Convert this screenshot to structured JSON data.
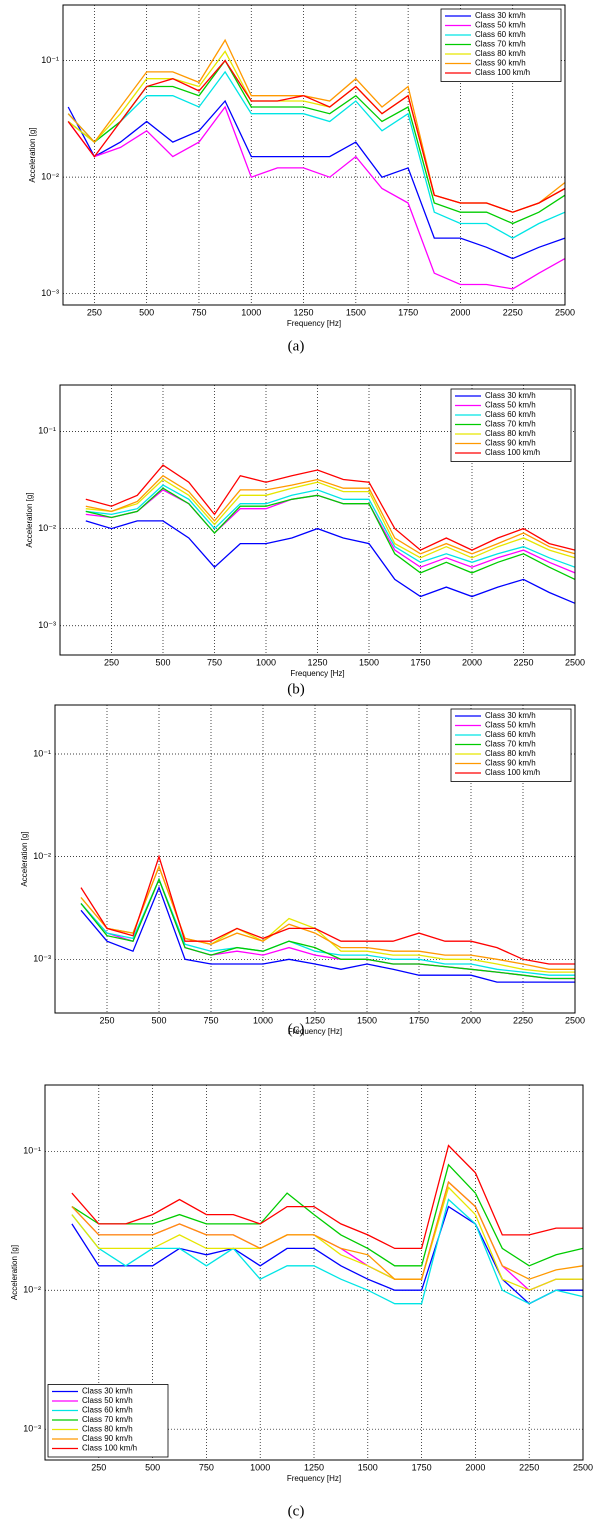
{
  "chart_data": [
    {
      "type": "line",
      "log_y": true,
      "grid": true,
      "legend": "upper right",
      "caption": "(a)",
      "xlabel": "Frequency [Hz]",
      "ylabel": "Acceleration [g]",
      "xlim": [
        100,
        2500
      ],
      "ylim": [
        0.0008,
        0.3
      ],
      "xticks": [
        250,
        500,
        750,
        1000,
        1250,
        1500,
        1750,
        2000,
        2250,
        2500
      ],
      "yticks": [
        {
          "value": 0.001,
          "label": "10⁻³"
        },
        {
          "value": 0.01,
          "label": "10⁻²"
        },
        {
          "value": 0.1,
          "label": "10⁻¹"
        }
      ],
      "x": [
        125,
        250,
        375,
        500,
        625,
        750,
        875,
        1000,
        1125,
        1250,
        1375,
        1500,
        1625,
        1750,
        1875,
        2000,
        2125,
        2250,
        2375,
        2500
      ],
      "series": [
        {
          "name": "Class 30 km/h",
          "color": "#0000ff",
          "values": [
            0.04,
            0.015,
            0.02,
            0.03,
            0.02,
            0.025,
            0.045,
            0.015,
            0.015,
            0.015,
            0.015,
            0.02,
            0.01,
            0.012,
            0.003,
            0.003,
            0.0025,
            0.002,
            0.0025,
            0.003
          ]
        },
        {
          "name": "Class 50 km/h",
          "color": "#ff00ff",
          "values": [
            0.03,
            0.015,
            0.018,
            0.025,
            0.015,
            0.02,
            0.04,
            0.01,
            0.012,
            0.012,
            0.01,
            0.015,
            0.008,
            0.006,
            0.0015,
            0.0012,
            0.0012,
            0.0011,
            0.0015,
            0.002
          ]
        },
        {
          "name": "Class 60 km/h",
          "color": "#00e5e5",
          "values": [
            0.035,
            0.02,
            0.03,
            0.05,
            0.05,
            0.04,
            0.08,
            0.035,
            0.035,
            0.035,
            0.03,
            0.045,
            0.025,
            0.035,
            0.005,
            0.004,
            0.004,
            0.003,
            0.004,
            0.005
          ]
        },
        {
          "name": "Class 70 km/h",
          "color": "#00cc00",
          "values": [
            0.03,
            0.02,
            0.03,
            0.06,
            0.06,
            0.05,
            0.1,
            0.04,
            0.04,
            0.04,
            0.035,
            0.05,
            0.03,
            0.04,
            0.006,
            0.005,
            0.005,
            0.004,
            0.005,
            0.007
          ]
        },
        {
          "name": "Class 80 km/h",
          "color": "#e6e600",
          "values": [
            0.03,
            0.02,
            0.035,
            0.07,
            0.07,
            0.06,
            0.12,
            0.045,
            0.045,
            0.045,
            0.04,
            0.06,
            0.035,
            0.05,
            0.007,
            0.006,
            0.006,
            0.005,
            0.006,
            0.008
          ]
        },
        {
          "name": "Class 90 km/h",
          "color": "#ff9900",
          "values": [
            0.035,
            0.02,
            0.04,
            0.08,
            0.08,
            0.065,
            0.15,
            0.05,
            0.05,
            0.05,
            0.045,
            0.07,
            0.04,
            0.06,
            0.007,
            0.006,
            0.006,
            0.005,
            0.006,
            0.009
          ]
        },
        {
          "name": "Class 100 km/h",
          "color": "#ff0000",
          "values": [
            0.03,
            0.015,
            0.03,
            0.06,
            0.07,
            0.055,
            0.1,
            0.045,
            0.045,
            0.05,
            0.04,
            0.06,
            0.035,
            0.05,
            0.007,
            0.006,
            0.006,
            0.005,
            0.006,
            0.008
          ]
        }
      ]
    },
    {
      "type": "line",
      "log_y": true,
      "grid": true,
      "legend": "upper right",
      "caption": "(b)",
      "xlabel": "Frequency [Hz]",
      "ylabel": "Acceleration [g]",
      "xlim": [
        0,
        2500
      ],
      "ylim": [
        0.0005,
        0.3
      ],
      "xticks": [
        250,
        500,
        750,
        1000,
        1250,
        1500,
        1750,
        2000,
        2250,
        2500
      ],
      "yticks": [
        {
          "value": 0.001,
          "label": "10⁻³"
        },
        {
          "value": 0.01,
          "label": "10⁻²"
        },
        {
          "value": 0.1,
          "label": "10⁻¹"
        }
      ],
      "x": [
        125,
        250,
        375,
        500,
        625,
        750,
        875,
        1000,
        1125,
        1250,
        1375,
        1500,
        1625,
        1750,
        1875,
        2000,
        2125,
        2250,
        2375,
        2500
      ],
      "series": [
        {
          "name": "Class 30 km/h",
          "color": "#0000ff",
          "values": [
            0.012,
            0.01,
            0.012,
            0.012,
            0.008,
            0.004,
            0.007,
            0.007,
            0.008,
            0.01,
            0.008,
            0.007,
            0.003,
            0.002,
            0.0025,
            0.002,
            0.0025,
            0.003,
            0.0022,
            0.0017
          ]
        },
        {
          "name": "Class 50 km/h",
          "color": "#ff00ff",
          "values": [
            0.014,
            0.013,
            0.015,
            0.025,
            0.018,
            0.009,
            0.016,
            0.016,
            0.02,
            0.022,
            0.018,
            0.018,
            0.006,
            0.004,
            0.005,
            0.004,
            0.005,
            0.006,
            0.0045,
            0.0035
          ]
        },
        {
          "name": "Class 60 km/h",
          "color": "#00e5e5",
          "values": [
            0.015,
            0.014,
            0.016,
            0.028,
            0.02,
            0.01,
            0.018,
            0.018,
            0.022,
            0.025,
            0.02,
            0.02,
            0.0065,
            0.0045,
            0.0055,
            0.0045,
            0.0055,
            0.0065,
            0.005,
            0.004
          ]
        },
        {
          "name": "Class 70 km/h",
          "color": "#00cc00",
          "values": [
            0.015,
            0.013,
            0.015,
            0.026,
            0.018,
            0.009,
            0.017,
            0.017,
            0.02,
            0.022,
            0.018,
            0.018,
            0.0055,
            0.0035,
            0.0045,
            0.0035,
            0.0045,
            0.0055,
            0.004,
            0.003
          ]
        },
        {
          "name": "Class 80 km/h",
          "color": "#e6e600",
          "values": [
            0.016,
            0.015,
            0.018,
            0.032,
            0.022,
            0.011,
            0.022,
            0.022,
            0.026,
            0.03,
            0.024,
            0.024,
            0.007,
            0.005,
            0.0065,
            0.005,
            0.0065,
            0.008,
            0.006,
            0.005
          ]
        },
        {
          "name": "Class 90 km/h",
          "color": "#ff9900",
          "values": [
            0.017,
            0.015,
            0.019,
            0.035,
            0.024,
            0.012,
            0.025,
            0.025,
            0.028,
            0.032,
            0.026,
            0.026,
            0.008,
            0.0055,
            0.007,
            0.0055,
            0.007,
            0.009,
            0.0065,
            0.0055
          ]
        },
        {
          "name": "Class 100 km/h",
          "color": "#ff0000",
          "values": [
            0.02,
            0.017,
            0.022,
            0.045,
            0.03,
            0.014,
            0.035,
            0.03,
            0.035,
            0.04,
            0.032,
            0.03,
            0.01,
            0.006,
            0.008,
            0.006,
            0.008,
            0.01,
            0.007,
            0.006
          ]
        }
      ]
    },
    {
      "type": "line",
      "log_y": true,
      "grid": true,
      "legend": "upper right",
      "caption": "(c)",
      "xlabel": "Frequency [Hz]",
      "ylabel": "Acceleration [g]",
      "xlim": [
        0,
        2500
      ],
      "ylim": [
        0.0003,
        0.3
      ],
      "xticks": [
        250,
        500,
        750,
        1000,
        1250,
        1500,
        1750,
        2000,
        2250,
        2500
      ],
      "yticks": [
        {
          "value": 0.001,
          "label": "10⁻³"
        },
        {
          "value": 0.01,
          "label": "10⁻²"
        },
        {
          "value": 0.1,
          "label": "10⁻¹"
        }
      ],
      "x": [
        125,
        250,
        375,
        500,
        625,
        750,
        875,
        1000,
        1125,
        1250,
        1375,
        1500,
        1625,
        1750,
        1875,
        2000,
        2125,
        2250,
        2375,
        2500
      ],
      "series": [
        {
          "name": "Class 30 km/h",
          "color": "#0000ff",
          "values": [
            0.003,
            0.0015,
            0.0012,
            0.005,
            0.001,
            0.0009,
            0.0009,
            0.0009,
            0.001,
            0.0009,
            0.0008,
            0.0009,
            0.0008,
            0.0007,
            0.0007,
            0.0007,
            0.0006,
            0.0006,
            0.0006,
            0.0006
          ]
        },
        {
          "name": "Class 50 km/h",
          "color": "#ff00ff",
          "values": [
            0.0035,
            0.0018,
            0.0015,
            0.006,
            0.0013,
            0.0011,
            0.0012,
            0.0011,
            0.0013,
            0.0011,
            0.001,
            0.001,
            0.0009,
            0.0009,
            0.00085,
            0.0008,
            0.00075,
            0.0007,
            0.00065,
            0.00065
          ]
        },
        {
          "name": "Class 60 km/h",
          "color": "#00e5e5",
          "values": [
            0.0035,
            0.0018,
            0.0016,
            0.006,
            0.0014,
            0.0012,
            0.0013,
            0.0012,
            0.0015,
            0.0012,
            0.0011,
            0.0011,
            0.001,
            0.001,
            0.0009,
            0.0009,
            0.0008,
            0.00075,
            0.0007,
            0.0007
          ]
        },
        {
          "name": "Class 70 km/h",
          "color": "#00cc00",
          "values": [
            0.0035,
            0.0017,
            0.0015,
            0.006,
            0.0013,
            0.0011,
            0.0013,
            0.0012,
            0.0015,
            0.0013,
            0.001,
            0.001,
            0.0009,
            0.0009,
            0.00085,
            0.0008,
            0.00075,
            0.0007,
            0.00065,
            0.00065
          ]
        },
        {
          "name": "Class 80 km/h",
          "color": "#e6e600",
          "values": [
            0.004,
            0.002,
            0.0018,
            0.008,
            0.0016,
            0.0014,
            0.002,
            0.0015,
            0.0025,
            0.002,
            0.0012,
            0.0012,
            0.0011,
            0.0011,
            0.001,
            0.001,
            0.0009,
            0.0008,
            0.00075,
            0.00075
          ]
        },
        {
          "name": "Class 90 km/h",
          "color": "#ff9900",
          "values": [
            0.004,
            0.002,
            0.0018,
            0.008,
            0.0016,
            0.0014,
            0.0018,
            0.0015,
            0.0022,
            0.0018,
            0.0013,
            0.0013,
            0.0012,
            0.0012,
            0.0011,
            0.0011,
            0.001,
            0.0009,
            0.0008,
            0.0008
          ]
        },
        {
          "name": "Class 100 km/h",
          "color": "#ff0000",
          "values": [
            0.005,
            0.002,
            0.0017,
            0.01,
            0.0015,
            0.0015,
            0.002,
            0.0016,
            0.002,
            0.002,
            0.0015,
            0.0015,
            0.0015,
            0.0018,
            0.0015,
            0.0015,
            0.0013,
            0.001,
            0.0009,
            0.0009
          ]
        }
      ]
    },
    {
      "type": "line",
      "log_y": true,
      "grid": true,
      "legend": "lower left",
      "caption": "(c)",
      "xlabel": "Frequency [Hz]",
      "ylabel": "Acceleration [g]",
      "xlim": [
        0,
        2500
      ],
      "ylim": [
        0.0006,
        0.3
      ],
      "xticks": [
        250,
        500,
        750,
        1000,
        1250,
        1500,
        1750,
        2000,
        2250,
        2500
      ],
      "yticks": [
        {
          "value": 0.001,
          "label": "10⁻³"
        },
        {
          "value": 0.01,
          "label": "10⁻²"
        },
        {
          "value": 0.1,
          "label": "10⁻¹"
        }
      ],
      "x": [
        125,
        250,
        375,
        500,
        625,
        750,
        875,
        1000,
        1125,
        1250,
        1375,
        1500,
        1625,
        1750,
        1875,
        2000,
        2125,
        2250,
        2375,
        2500
      ],
      "series": [
        {
          "name": "Class 30 km/h",
          "color": "#0000ff",
          "values": [
            0.03,
            0.015,
            0.015,
            0.015,
            0.02,
            0.018,
            0.02,
            0.015,
            0.02,
            0.02,
            0.015,
            0.012,
            0.01,
            0.01,
            0.04,
            0.03,
            0.012,
            0.008,
            0.01,
            0.01
          ]
        },
        {
          "name": "Class 50 km/h",
          "color": "#ff00ff",
          "values": [
            0.04,
            0.025,
            0.025,
            0.025,
            0.03,
            0.025,
            0.025,
            0.02,
            0.025,
            0.025,
            0.02,
            0.015,
            0.012,
            0.012,
            0.06,
            0.04,
            0.015,
            0.01,
            0.012,
            0.012
          ]
        },
        {
          "name": "Class 60 km/h",
          "color": "#00e5e5",
          "values": [
            0.035,
            0.02,
            0.015,
            0.02,
            0.02,
            0.015,
            0.02,
            0.012,
            0.015,
            0.015,
            0.012,
            0.01,
            0.008,
            0.008,
            0.045,
            0.03,
            0.01,
            0.008,
            0.01,
            0.009
          ]
        },
        {
          "name": "Class 70 km/h",
          "color": "#00cc00",
          "values": [
            0.04,
            0.03,
            0.03,
            0.03,
            0.035,
            0.03,
            0.03,
            0.03,
            0.05,
            0.035,
            0.025,
            0.02,
            0.015,
            0.015,
            0.08,
            0.05,
            0.02,
            0.015,
            0.018,
            0.02
          ]
        },
        {
          "name": "Class 80 km/h",
          "color": "#e6e600",
          "values": [
            0.035,
            0.02,
            0.02,
            0.02,
            0.025,
            0.02,
            0.02,
            0.02,
            0.025,
            0.025,
            0.018,
            0.015,
            0.012,
            0.012,
            0.055,
            0.035,
            0.012,
            0.01,
            0.012,
            0.012
          ]
        },
        {
          "name": "Class 90 km/h",
          "color": "#ff9900",
          "values": [
            0.04,
            0.025,
            0.025,
            0.025,
            0.03,
            0.025,
            0.025,
            0.02,
            0.025,
            0.025,
            0.02,
            0.018,
            0.012,
            0.012,
            0.06,
            0.04,
            0.015,
            0.012,
            0.014,
            0.015
          ]
        },
        {
          "name": "Class 100 km/h",
          "color": "#ff0000",
          "values": [
            0.05,
            0.03,
            0.03,
            0.035,
            0.045,
            0.035,
            0.035,
            0.03,
            0.04,
            0.04,
            0.03,
            0.025,
            0.02,
            0.02,
            0.11,
            0.07,
            0.025,
            0.025,
            0.028,
            0.028
          ]
        }
      ]
    }
  ]
}
